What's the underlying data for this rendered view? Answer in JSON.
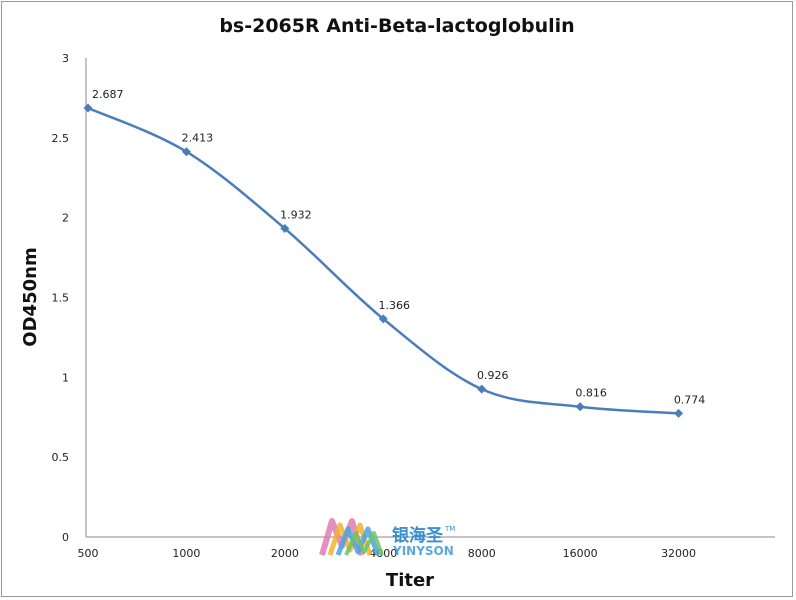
{
  "chart_data": {
    "type": "line",
    "title": "bs-2065R Anti-Beta-lactoglobulin",
    "xlabel": "Titer",
    "ylabel": "OD450nm",
    "categories": [
      "500",
      "1000",
      "2000",
      "4000",
      "8000",
      "16000",
      "32000"
    ],
    "series": [
      {
        "values": [
          2.687,
          2.413,
          1.932,
          1.366,
          0.926,
          0.816,
          0.774
        ]
      }
    ],
    "data_labels": [
      "2.687",
      "2.413",
      "1.932",
      "1.366",
      "0.926",
      "0.816",
      "0.774"
    ],
    "yticks": [
      "0",
      "0.5",
      "1",
      "1.5",
      "2",
      "2.5",
      "3"
    ],
    "ylim": [
      0,
      3
    ],
    "grid": false,
    "line_color": "#4a7ebb",
    "marker": "diamond"
  },
  "watermark": {
    "brand_cn": "银海圣",
    "brand_en": "YINYSON",
    "tm": "TM"
  }
}
